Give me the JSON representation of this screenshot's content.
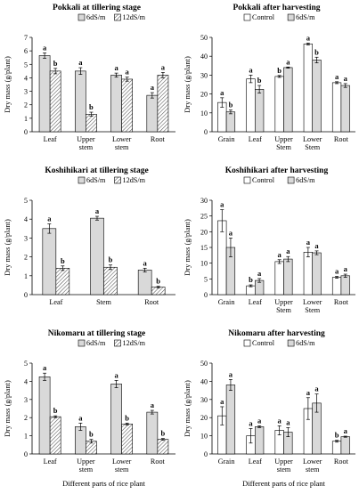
{
  "colors": {
    "light_bar": "#d9d9d9",
    "hatch_bar": "#ffffff",
    "white_bar": "#ffffff",
    "axis": "#000000"
  },
  "chart_data": [
    {
      "id": "pokkali-tillering",
      "type": "bar",
      "title": "Pokkali at tillering stage",
      "ylabel": "Dry mass (g/plant)",
      "xlabel": "",
      "ylim": [
        0,
        7
      ],
      "yticks": [
        0,
        1,
        2,
        3,
        4,
        5,
        6,
        7
      ],
      "categories": [
        "Leaf",
        [
          "Upper",
          "stem"
        ],
        [
          "Lower",
          "stem"
        ],
        "Root"
      ],
      "legend": "top-right",
      "series": [
        {
          "name": "6dS/m",
          "style": "light",
          "values": [
            5.65,
            4.5,
            4.2,
            2.7
          ],
          "errors": [
            0.2,
            0.25,
            0.15,
            0.2
          ],
          "labels": [
            "a",
            "a",
            "a",
            "a"
          ]
        },
        {
          "name": "12dS/m",
          "style": "hatch",
          "values": [
            4.5,
            1.3,
            3.9,
            4.2
          ],
          "errors": [
            0.2,
            0.15,
            0.15,
            0.2
          ],
          "labels": [
            "b",
            "b",
            "a",
            "a"
          ]
        }
      ]
    },
    {
      "id": "pokkali-harvesting",
      "type": "bar",
      "title": "Pokkali after harvesting",
      "ylabel": "Dry mass (g/plant)",
      "xlabel": "",
      "ylim": [
        0,
        50
      ],
      "yticks": [
        0,
        10,
        20,
        30,
        40,
        50
      ],
      "categories": [
        "Grain",
        "Leaf",
        [
          "Upper",
          "Stem"
        ],
        [
          "Lower",
          "Stem"
        ],
        "Root"
      ],
      "legend": "top-center",
      "series": [
        {
          "name": "Control",
          "style": "white",
          "values": [
            15.5,
            28,
            29.3,
            46.5,
            26
          ],
          "errors": [
            2.5,
            2.0,
            0.5,
            0.5,
            0.5
          ],
          "labels": [
            "a",
            "a",
            "b",
            "a",
            "a"
          ]
        },
        {
          "name": "6dS/m",
          "style": "light",
          "values": [
            10.5,
            22.5,
            34,
            38,
            24.5
          ],
          "errors": [
            1.0,
            2.0,
            0.3,
            1.5,
            1.0
          ],
          "labels": [
            "b",
            "b",
            "a",
            "b",
            "a"
          ]
        }
      ]
    },
    {
      "id": "koshihikari-tillering",
      "type": "bar",
      "title": "Koshihikari at tillering stage",
      "ylabel": "Dry mass (g/plant)",
      "xlabel": "",
      "ylim": [
        0,
        5
      ],
      "yticks": [
        0,
        1,
        2,
        3,
        4,
        5
      ],
      "categories": [
        "Leaf",
        "Stem",
        "Root"
      ],
      "legend": "top-right",
      "series": [
        {
          "name": "6dS/m",
          "style": "light",
          "values": [
            3.5,
            4.05,
            1.3
          ],
          "errors": [
            0.25,
            0.1,
            0.1
          ],
          "labels": [
            "a",
            "a",
            "a"
          ]
        },
        {
          "name": "12dS/m",
          "style": "hatch",
          "values": [
            1.4,
            1.45,
            0.4
          ],
          "errors": [
            0.12,
            0.12,
            0.04
          ],
          "labels": [
            "b",
            "b",
            "b"
          ]
        }
      ]
    },
    {
      "id": "koshihikari-harvesting",
      "type": "bar",
      "title": "Koshihikari after harvesting",
      "ylabel": "Dry mass (g/plant)",
      "xlabel": "",
      "ylim": [
        0,
        30
      ],
      "yticks": [
        0,
        5,
        10,
        15,
        20,
        25,
        30
      ],
      "categories": [
        "Grain",
        "Leaf",
        [
          "Upper",
          "Stem"
        ],
        [
          "Lower",
          "Stem"
        ],
        "Root"
      ],
      "legend": "top-center",
      "series": [
        {
          "name": "Control",
          "style": "white",
          "values": [
            23.5,
            2.8,
            10.5,
            13.5,
            5.5
          ],
          "errors": [
            3.5,
            0.3,
            0.6,
            1.5,
            0.3
          ],
          "labels": [
            "a",
            "b",
            "a",
            "a",
            "a"
          ]
        },
        {
          "name": "6dS/m",
          "style": "light",
          "values": [
            15,
            4.5,
            11.3,
            13.3,
            6
          ],
          "errors": [
            3.0,
            0.6,
            0.8,
            0.6,
            0.5
          ],
          "labels": [
            "a",
            "a",
            "a",
            "a",
            "a"
          ]
        }
      ]
    },
    {
      "id": "nikomaru-tillering",
      "type": "bar",
      "title": "Nikomaru at tillering stage",
      "ylabel": "Dry mass (g/plant)",
      "xlabel": "Different parts of rice plant",
      "ylim": [
        0,
        5
      ],
      "yticks": [
        0,
        1,
        2,
        3,
        4,
        5
      ],
      "categories": [
        "Leaf",
        [
          "Upper",
          "stem"
        ],
        [
          "Lower",
          "stem"
        ],
        "Root"
      ],
      "legend": "top-right",
      "series": [
        {
          "name": "6dS/m",
          "style": "light",
          "values": [
            4.25,
            1.5,
            3.85,
            2.3
          ],
          "errors": [
            0.2,
            0.2,
            0.2,
            0.1
          ],
          "labels": [
            "a",
            "a",
            "a",
            "a"
          ]
        },
        {
          "name": "12dS/m",
          "style": "hatch",
          "values": [
            2.05,
            0.7,
            1.65,
            0.8
          ],
          "errors": [
            0.05,
            0.1,
            0.05,
            0.05
          ],
          "labels": [
            "b",
            "b",
            "b",
            "b"
          ]
        }
      ]
    },
    {
      "id": "nikomaru-harvesting",
      "type": "bar",
      "title": "Nikomaru after harvesting",
      "ylabel": "Dry mass (g/plant)",
      "xlabel": "Different parts of rice plant",
      "ylim": [
        0,
        50
      ],
      "yticks": [
        0,
        10,
        20,
        30,
        40,
        50
      ],
      "categories": [
        "Grain",
        "Leaf",
        [
          "Upper",
          "stem"
        ],
        [
          "Lower",
          "stem"
        ],
        "Root"
      ],
      "legend": "top-center",
      "series": [
        {
          "name": "Control",
          "style": "white",
          "values": [
            21,
            10,
            13,
            25,
            7
          ],
          "errors": [
            5,
            4,
            2.5,
            6,
            0.5
          ],
          "labels": [
            "a",
            "a",
            "a",
            "a",
            "b"
          ]
        },
        {
          "name": "6dS/m",
          "style": "light",
          "values": [
            38,
            15,
            12,
            28,
            9.5
          ],
          "errors": [
            3,
            0.5,
            2.5,
            5,
            0.3
          ],
          "labels": [
            "a",
            "a",
            "a",
            "a",
            "a"
          ]
        }
      ]
    }
  ]
}
